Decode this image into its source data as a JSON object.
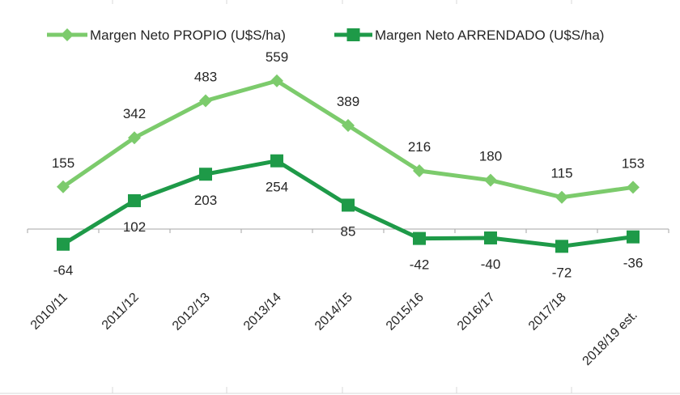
{
  "chart_data": {
    "type": "line",
    "title": "",
    "xlabel": "",
    "ylabel": "",
    "categories": [
      "2010/11",
      "2011/12",
      "2012/13",
      "2013/14",
      "2014/15",
      "2015/16",
      "2016/17",
      "2017/18",
      "2018/19 est."
    ],
    "series": [
      {
        "name": "Margen Neto PROPIO (U$S/ha)",
        "values": [
          155,
          342,
          483,
          559,
          389,
          216,
          180,
          115,
          153
        ],
        "color": "#7ccb6c",
        "marker": "diamond",
        "label_position": "above"
      },
      {
        "name": "Margen Neto ARRENDADO (U$S/ha)",
        "values": [
          -64,
          102,
          203,
          254,
          85,
          -42,
          -40,
          -72,
          -36
        ],
        "color": "#1e9a48",
        "marker": "square",
        "label_position": "below"
      }
    ],
    "ylim": [
      -100,
      650
    ],
    "grid": false,
    "legend_position": "top"
  }
}
